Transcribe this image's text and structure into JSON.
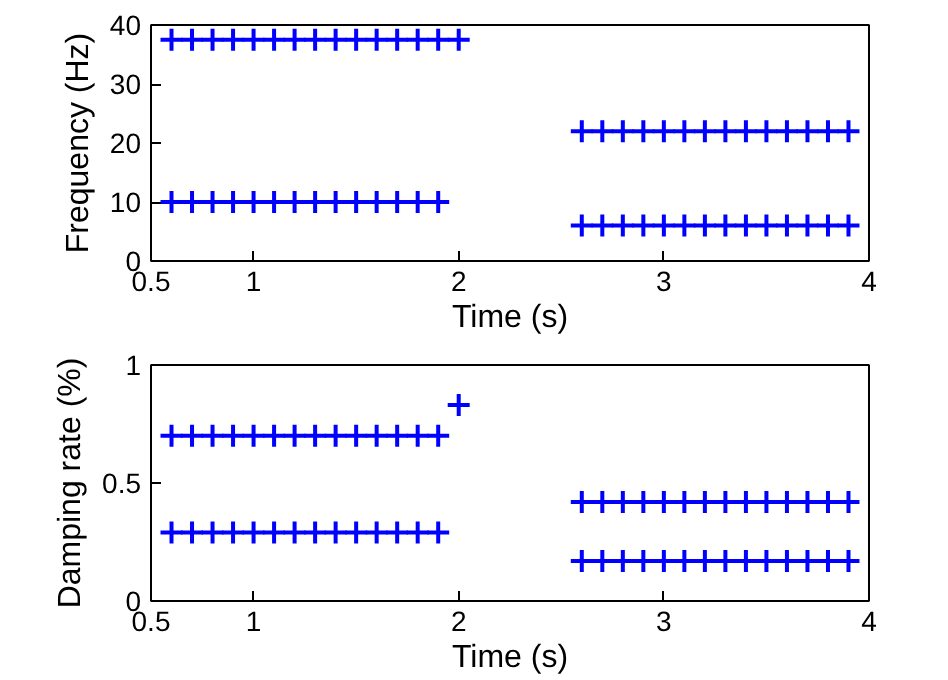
{
  "chart_data": [
    {
      "type": "scatter",
      "xlabel": "Time (s)",
      "ylabel": "Frequency (Hz)",
      "xlim": [
        0.5,
        4
      ],
      "ylim": [
        0,
        40
      ],
      "xticks": [
        0.5,
        1,
        2,
        3,
        4
      ],
      "yticks": [
        0,
        10,
        20,
        30,
        40
      ],
      "grid": false,
      "marker": "cross",
      "series": [
        {
          "color": "#0000ff",
          "x": [
            0.6,
            0.7,
            0.8,
            0.9,
            1.0,
            1.1,
            1.2,
            1.3,
            1.4,
            1.5,
            1.6,
            1.7,
            1.8,
            1.9,
            2.0
          ],
          "values": [
            37.5,
            37.5,
            37.5,
            37.5,
            37.5,
            37.5,
            37.5,
            37.5,
            37.5,
            37.5,
            37.5,
            37.5,
            37.5,
            37.5,
            37.5
          ]
        },
        {
          "color": "#0000ff",
          "x": [
            0.6,
            0.7,
            0.8,
            0.9,
            1.0,
            1.1,
            1.2,
            1.3,
            1.4,
            1.5,
            1.6,
            1.7,
            1.8,
            1.9
          ],
          "values": [
            10,
            10,
            10,
            10,
            10,
            10,
            10,
            10,
            10,
            10,
            10,
            10,
            10,
            10
          ]
        },
        {
          "color": "#0000ff",
          "x": [
            2.6,
            2.7,
            2.8,
            2.9,
            3.0,
            3.1,
            3.2,
            3.3,
            3.4,
            3.5,
            3.6,
            3.7,
            3.8,
            3.9
          ],
          "values": [
            22,
            22,
            22,
            22,
            22,
            22,
            22,
            22,
            22,
            22,
            22,
            22,
            22,
            22
          ]
        },
        {
          "color": "#0000ff",
          "x": [
            2.6,
            2.7,
            2.8,
            2.9,
            3.0,
            3.1,
            3.2,
            3.3,
            3.4,
            3.5,
            3.6,
            3.7,
            3.8,
            3.9
          ],
          "values": [
            6,
            6,
            6,
            6,
            6,
            6,
            6,
            6,
            6,
            6,
            6,
            6,
            6,
            6
          ]
        }
      ]
    },
    {
      "type": "scatter",
      "xlabel": "Time (s)",
      "ylabel": "Damping rate (%)",
      "xlim": [
        0.5,
        4
      ],
      "ylim": [
        0,
        1
      ],
      "xticks": [
        0.5,
        1,
        2,
        3,
        4
      ],
      "yticks": [
        0,
        0.5,
        1
      ],
      "grid": false,
      "marker": "cross",
      "series": [
        {
          "color": "#0000ff",
          "x": [
            0.6,
            0.7,
            0.8,
            0.9,
            1.0,
            1.1,
            1.2,
            1.3,
            1.4,
            1.5,
            1.6,
            1.7,
            1.8,
            1.9,
            2.0
          ],
          "values": [
            0.7,
            0.7,
            0.7,
            0.7,
            0.7,
            0.7,
            0.7,
            0.7,
            0.7,
            0.7,
            0.7,
            0.7,
            0.7,
            0.7,
            0.83
          ]
        },
        {
          "color": "#0000ff",
          "x": [
            0.6,
            0.7,
            0.8,
            0.9,
            1.0,
            1.1,
            1.2,
            1.3,
            1.4,
            1.5,
            1.6,
            1.7,
            1.8,
            1.9
          ],
          "values": [
            0.29,
            0.29,
            0.29,
            0.29,
            0.29,
            0.29,
            0.29,
            0.29,
            0.29,
            0.29,
            0.29,
            0.29,
            0.29,
            0.29
          ]
        },
        {
          "color": "#0000ff",
          "x": [
            2.6,
            2.7,
            2.8,
            2.9,
            3.0,
            3.1,
            3.2,
            3.3,
            3.4,
            3.5,
            3.6,
            3.7,
            3.8,
            3.9
          ],
          "values": [
            0.42,
            0.42,
            0.42,
            0.42,
            0.42,
            0.42,
            0.42,
            0.42,
            0.42,
            0.42,
            0.42,
            0.42,
            0.42,
            0.42
          ]
        },
        {
          "color": "#0000ff",
          "x": [
            2.6,
            2.7,
            2.8,
            2.9,
            3.0,
            3.1,
            3.2,
            3.3,
            3.4,
            3.5,
            3.6,
            3.7,
            3.8,
            3.9
          ],
          "values": [
            0.17,
            0.17,
            0.17,
            0.17,
            0.17,
            0.17,
            0.17,
            0.17,
            0.17,
            0.17,
            0.17,
            0.17,
            0.17,
            0.17
          ]
        }
      ]
    }
  ]
}
